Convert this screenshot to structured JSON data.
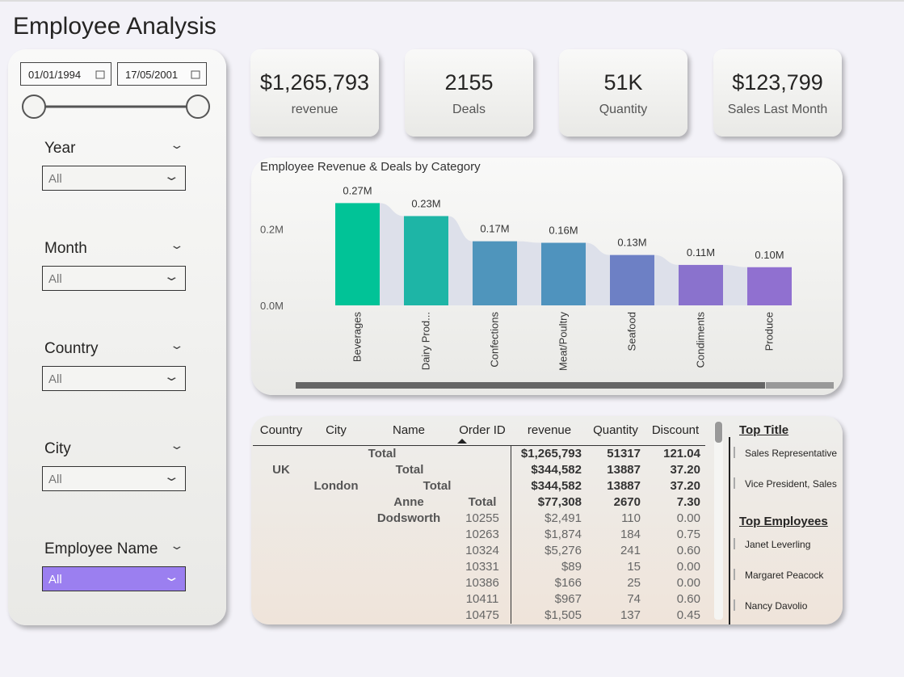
{
  "header": {
    "title": "Employee Analysis"
  },
  "slicers": {
    "date_from": "01/01/1994",
    "date_to": "17/05/2001",
    "dropdowns": [
      {
        "label": "Year",
        "value": "All"
      },
      {
        "label": "Month",
        "value": "All"
      },
      {
        "label": "Country",
        "value": "All"
      },
      {
        "label": "City",
        "value": "All"
      },
      {
        "label": "Employee Name",
        "value": "All"
      }
    ]
  },
  "kpis": [
    {
      "value": "$1,265,793",
      "label": "revenue"
    },
    {
      "value": "2155",
      "label": "Deals"
    },
    {
      "value": "51K",
      "label": "Quantity"
    },
    {
      "value": "$123,799",
      "label": "Sales Last Month"
    }
  ],
  "chart_data": {
    "type": "bar",
    "title": "Employee Revenue & Deals by Category",
    "categories": [
      "Beverages",
      "Dairy Prod...",
      "Confections",
      "Meat/Poultry",
      "Seafood",
      "Condiments",
      "Produce"
    ],
    "values": [
      268000,
      234000,
      168000,
      164000,
      132000,
      106000,
      100000
    ],
    "value_labels": [
      "0.27M",
      "0.23M",
      "0.17M",
      "0.16M",
      "0.13M",
      "0.11M",
      "0.10M"
    ],
    "colors": [
      "#01c397",
      "#1eb5a6",
      "#4f95bc",
      "#4f93be",
      "#6d80c5",
      "#8a72cd",
      "#9070d0"
    ],
    "ylim": [
      0,
      290000
    ],
    "yticks": [
      {
        "value": 0,
        "label": "0.0M"
      },
      {
        "value": 200000,
        "label": "0.2M"
      }
    ],
    "grid": false
  },
  "table": {
    "columns": [
      "Country",
      "City",
      "Name",
      "Order ID",
      "revenue",
      "Quantity",
      "Discount"
    ],
    "rows": [
      {
        "label": "Total",
        "revenue": "$1,265,793",
        "quantity": "51317",
        "discount": "121.04"
      },
      {
        "country": "UK",
        "label": "Total",
        "revenue": "$344,582",
        "quantity": "13887",
        "discount": "37.20"
      },
      {
        "city": "London",
        "label": "Total",
        "revenue": "$344,582",
        "quantity": "13887",
        "discount": "37.20"
      },
      {
        "name": "Anne",
        "label": "Total",
        "revenue": "$77,308",
        "quantity": "2670",
        "discount": "7.30"
      },
      {
        "name": "Dodsworth",
        "order": "10255",
        "revenue": "$2,491",
        "quantity": "110",
        "discount": "0.00"
      },
      {
        "order": "10263",
        "revenue": "$1,874",
        "quantity": "184",
        "discount": "0.75"
      },
      {
        "order": "10324",
        "revenue": "$5,276",
        "quantity": "241",
        "discount": "0.60"
      },
      {
        "order": "10331",
        "revenue": "$89",
        "quantity": "15",
        "discount": "0.00"
      },
      {
        "order": "10386",
        "revenue": "$166",
        "quantity": "25",
        "discount": "0.00"
      },
      {
        "order": "10411",
        "revenue": "$967",
        "quantity": "74",
        "discount": "0.60"
      },
      {
        "order": "10475",
        "revenue": "$1,505",
        "quantity": "137",
        "discount": "0.45"
      }
    ]
  },
  "side": {
    "top_title": {
      "heading": "Top Title",
      "items": [
        "Sales Representative",
        "Vice President, Sales"
      ]
    },
    "top_employees": {
      "heading": "Top Employees",
      "items": [
        "Janet Leverling",
        "Margaret Peacock",
        "Nancy Davolio"
      ]
    }
  }
}
